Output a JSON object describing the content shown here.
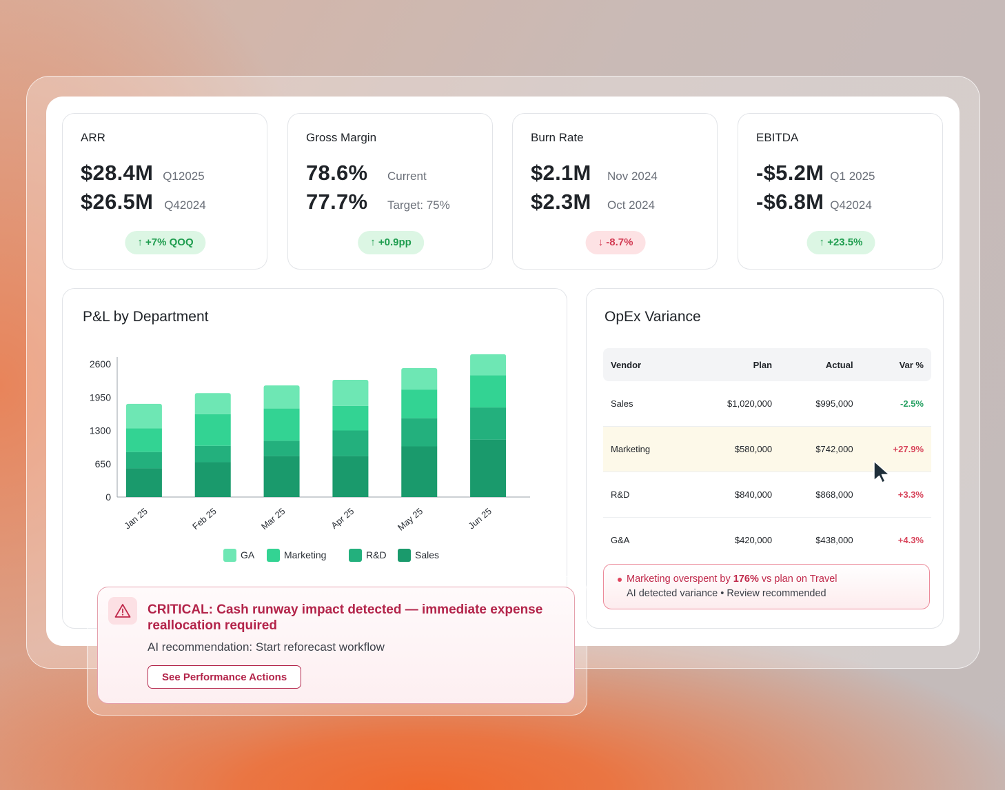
{
  "kpis": [
    {
      "title": "ARR",
      "rows": [
        {
          "value": "$28.4M",
          "sub": "Q12025"
        },
        {
          "value": "$26.5M",
          "sub": "Q42024"
        }
      ],
      "badge": "+7% QOQ",
      "trend": "up"
    },
    {
      "title": "Gross Margin",
      "rows": [
        {
          "value": "78.6%",
          "sub": "Current"
        },
        {
          "value": "77.7%",
          "sub": "Target: 75%"
        }
      ],
      "badge": "+0.9pp",
      "trend": "up"
    },
    {
      "title": "Burn Rate",
      "rows": [
        {
          "value": "$2.1M",
          "sub": "Nov 2024"
        },
        {
          "value": "$2.3M",
          "sub": "Oct 2024"
        }
      ],
      "badge": "-8.7%",
      "trend": "down"
    },
    {
      "title": "EBITDA",
      "rows": [
        {
          "value": "-$5.2M",
          "sub": "Q1 2025"
        },
        {
          "value": "-$6.8M",
          "sub": "Q42024"
        }
      ],
      "badge": "+23.5%",
      "trend": "up"
    }
  ],
  "pl_chart": {
    "title": "P&L by Department"
  },
  "chart_data": {
    "type": "bar",
    "stacked": true,
    "title": "P&L by Department",
    "categories": [
      "Jan 25",
      "Feb 25",
      "Mar 25",
      "Apr 25",
      "May 25",
      "Jun 25"
    ],
    "yticks": [
      "2600",
      "1950",
      "1300",
      "650",
      "0"
    ],
    "ylim": [
      0,
      2600
    ],
    "series": [
      {
        "name": "Sales",
        "color": "#1a9a6c",
        "values": [
          560,
          680,
          800,
          800,
          990,
          1120
        ]
      },
      {
        "name": "R&D",
        "color": "#23b07d",
        "values": [
          320,
          320,
          300,
          500,
          550,
          630
        ]
      },
      {
        "name": "Marketing",
        "color": "#33d393",
        "values": [
          460,
          620,
          630,
          480,
          560,
          630
        ]
      },
      {
        "name": "GA",
        "color": "#6ee7b4",
        "values": [
          480,
          410,
          450,
          510,
          420,
          410
        ]
      }
    ],
    "legend": [
      "GA",
      "Marketing",
      "R&D",
      "Sales"
    ]
  },
  "opex": {
    "title": "OpEx Variance",
    "columns": [
      "Vendor",
      "Plan",
      "Actual",
      "Var %"
    ],
    "rows": [
      {
        "vendor": "Sales",
        "plan": "$1,020,000",
        "actual": "$995,000",
        "var": "-2.5%"
      },
      {
        "vendor": "Marketing",
        "plan": "$580,000",
        "actual": "$742,000",
        "var": "+27.9%"
      },
      {
        "vendor": "R&D",
        "plan": "$840,000",
        "actual": "$868,000",
        "var": "+3.3%"
      },
      {
        "vendor": "G&A",
        "plan": "$420,000",
        "actual": "$438,000",
        "var": "+4.3%"
      }
    ],
    "note": {
      "pre": "Marketing overspent by ",
      "highlight": "176%",
      "post": " vs plan on Travel",
      "line2": "AI detected variance • Review recommended"
    }
  },
  "alert": {
    "title": "CRITICAL: Cash runway impact detected — immediate expense reallocation required",
    "sub": "AI recommendation: Start reforecast workflow",
    "button": "See Performance Actions"
  },
  "colors": {
    "up": "#1f9d4f",
    "down": "#d23a52",
    "accent": "#b3244a"
  }
}
